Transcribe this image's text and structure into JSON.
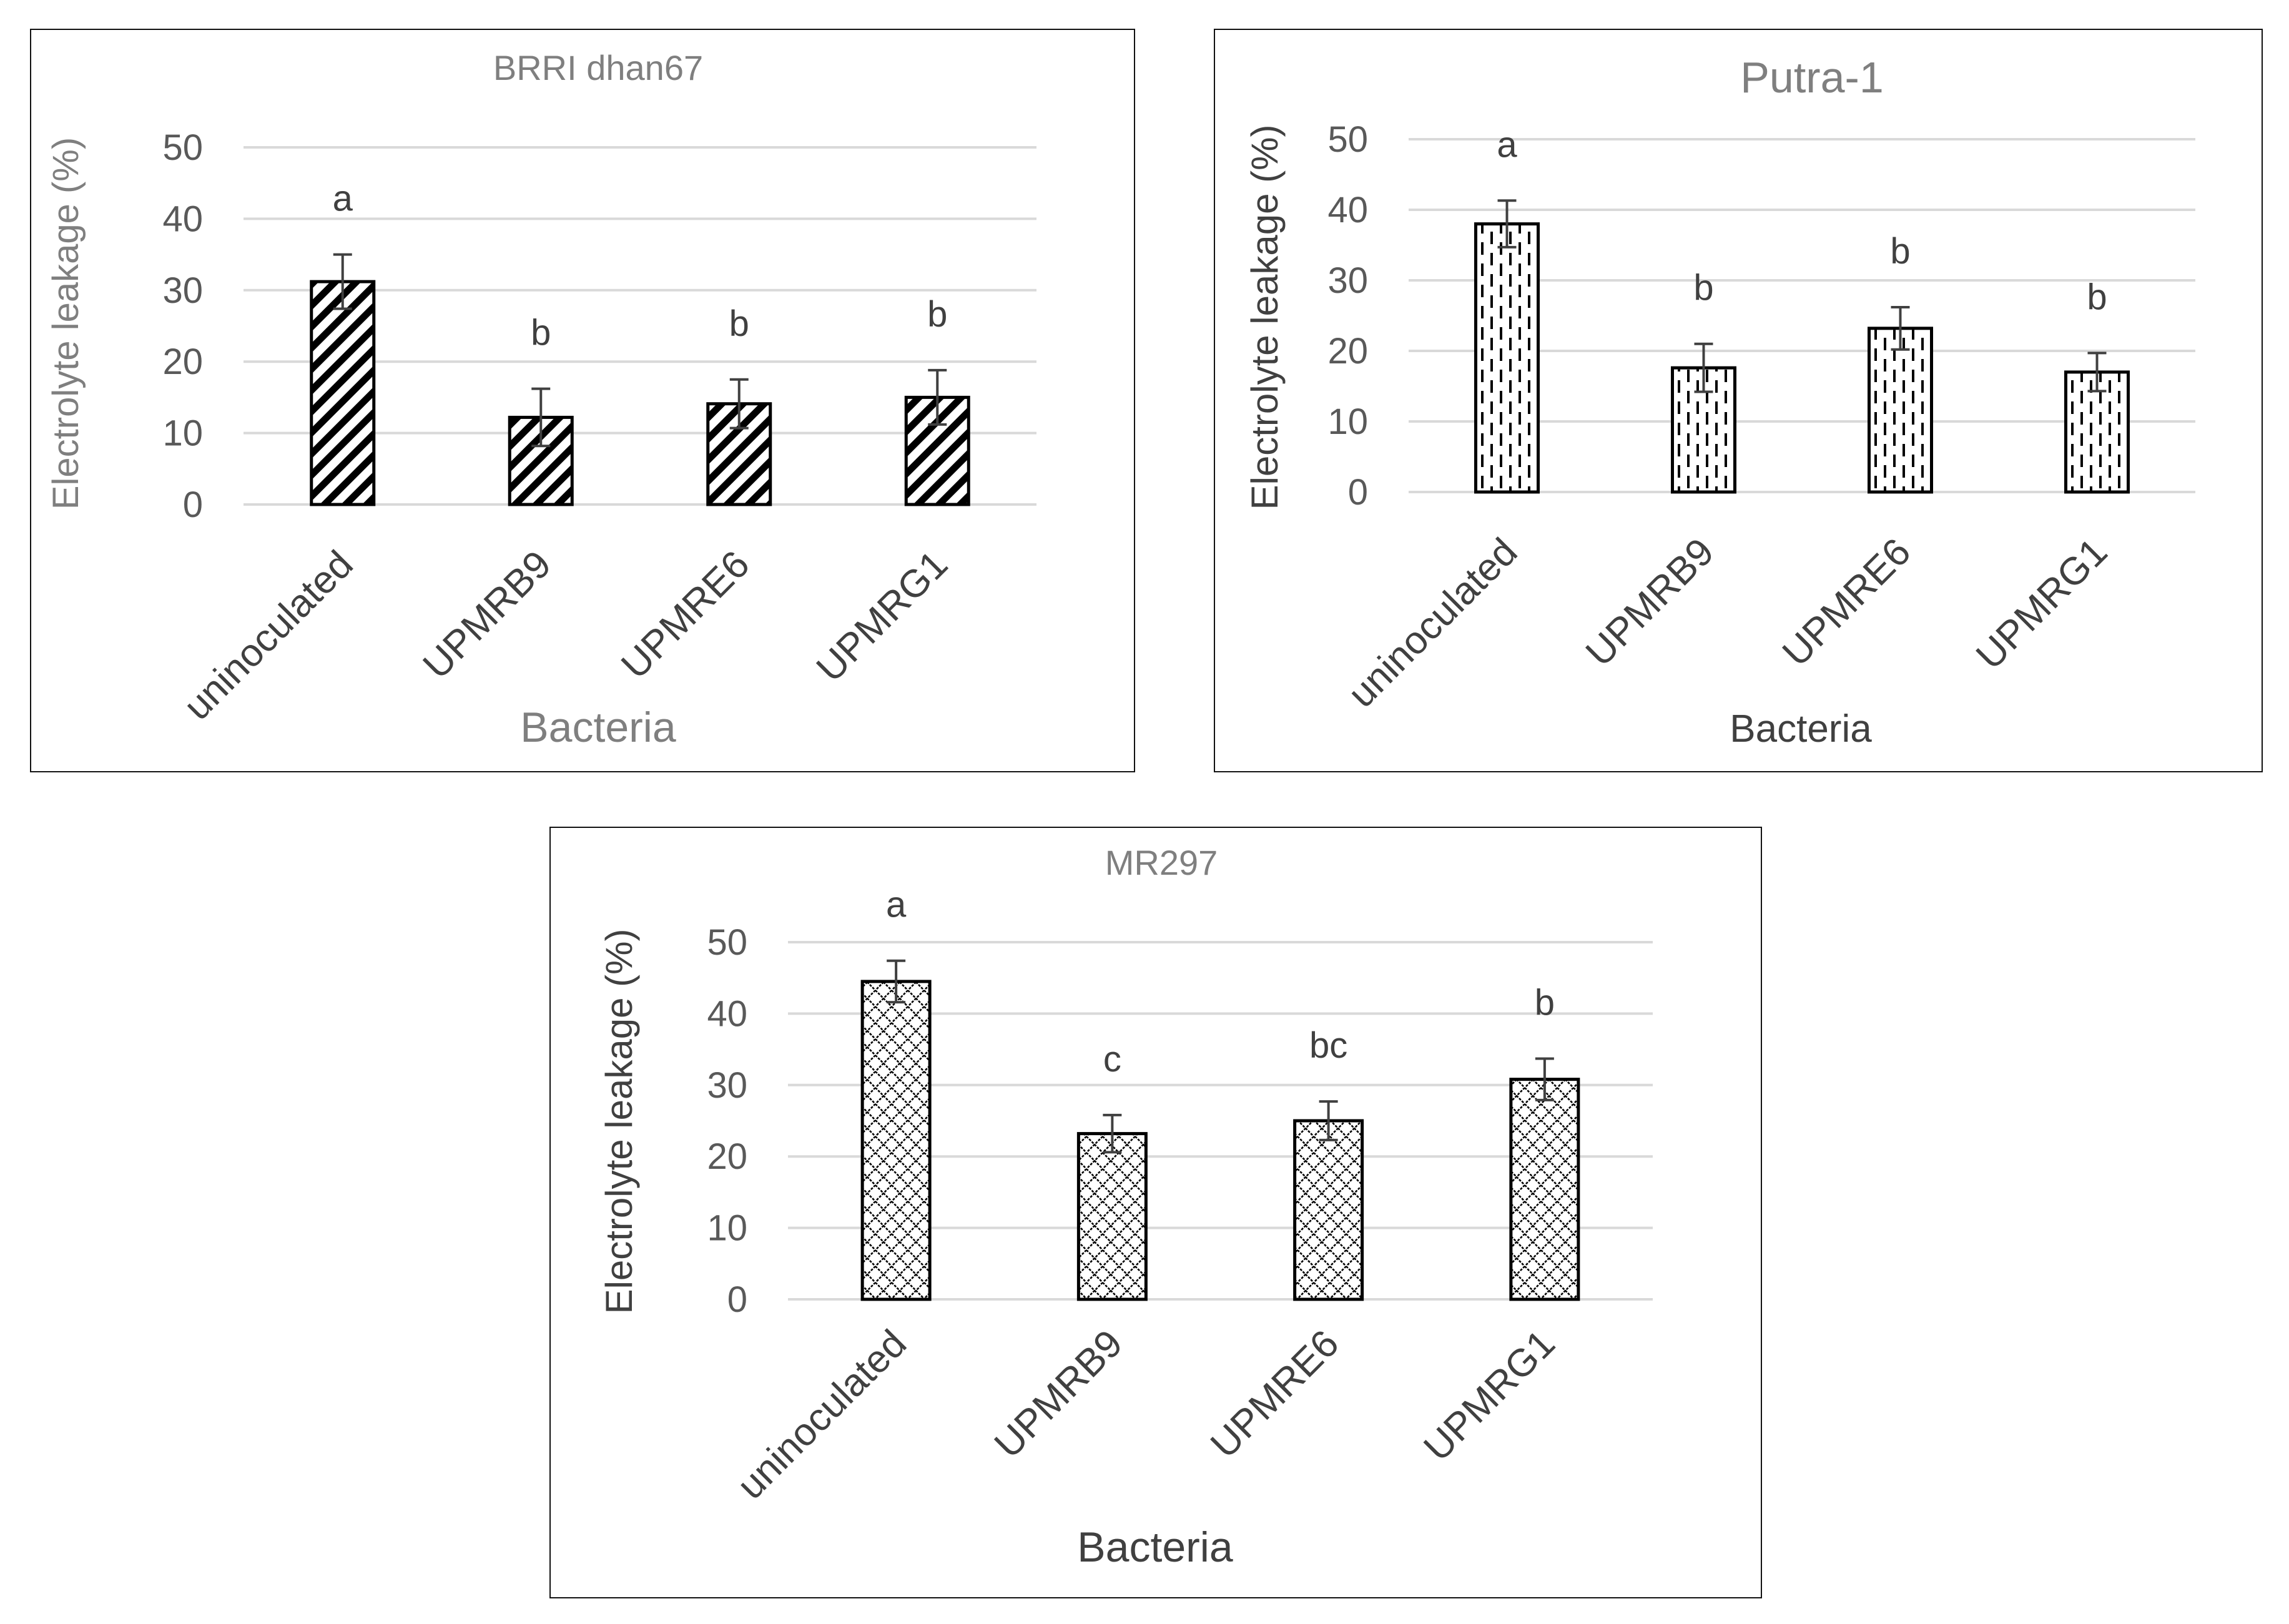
{
  "chart_data": [
    {
      "type": "bar",
      "title": "BRRI dhan67",
      "xlabel": "Bacteria",
      "ylabel": "Electrolyte leakage (%)",
      "ylim": [
        0,
        50
      ],
      "yticks": [
        "0",
        "10",
        "20",
        "30",
        "40",
        "50"
      ],
      "grid": true,
      "pattern": "diagonal-stripes",
      "categories": [
        "uninoculated",
        "UPMRB9",
        "UPMRE6",
        "UPMRG1"
      ],
      "values": [
        31.2,
        12.2,
        14.1,
        15.0
      ],
      "errors": [
        3.8,
        4.0,
        3.4,
        3.8
      ],
      "letters": [
        "a",
        "b",
        "b",
        "b"
      ]
    },
    {
      "type": "bar",
      "title": "Putra-1",
      "xlabel": "Bacteria",
      "ylabel": "Electrolyte leakage (%)",
      "ylim": [
        0,
        50
      ],
      "yticks": [
        "0",
        "10",
        "20",
        "30",
        "40",
        "50"
      ],
      "grid": true,
      "pattern": "dashed-vertical",
      "categories": [
        "uninoculated",
        "UPMRB9",
        "UPMRE6",
        "UPMRG1"
      ],
      "values": [
        38.0,
        17.6,
        23.2,
        17.0
      ],
      "errors": [
        3.3,
        3.4,
        3.0,
        2.7
      ],
      "letters": [
        "a",
        "b",
        "b",
        "b"
      ]
    },
    {
      "type": "bar",
      "title": "MR297",
      "xlabel": "Bacteria",
      "ylabel": "Electrolyte leakage (%)",
      "ylim": [
        0,
        50
      ],
      "yticks": [
        "0",
        "10",
        "20",
        "30",
        "40",
        "50"
      ],
      "grid": true,
      "pattern": "diagonal-crosshatch",
      "categories": [
        "uninoculated",
        "UPMRB9",
        "UPMRE6",
        "UPMRG1"
      ],
      "values": [
        44.5,
        23.2,
        25.0,
        30.8
      ],
      "errors": [
        2.9,
        2.6,
        2.7,
        2.9
      ],
      "letters": [
        "a",
        "c",
        "bc",
        "b"
      ]
    }
  ]
}
